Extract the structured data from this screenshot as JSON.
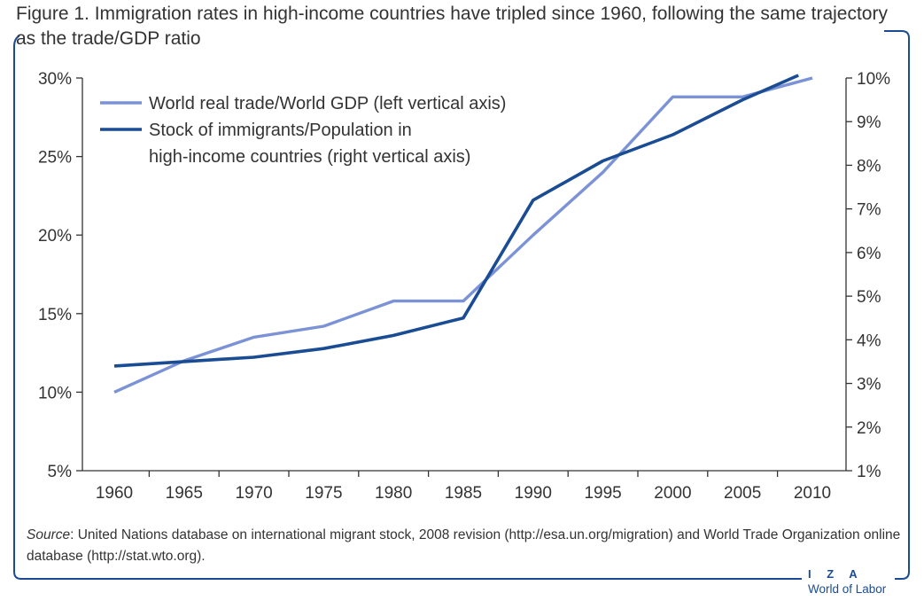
{
  "figure": {
    "title": "Figure 1. Immigration rates in high-income countries have tripled since 1960, following the same trajectory as the trade/GDP ratio",
    "source_label": "Source",
    "source_text": ": United Nations database on international migrant stock, 2008 revision (http://esa.un.org/migration) and World Trade Organization online database (http://stat.wto.org).",
    "logo_top": "I Z A",
    "logo_bottom": "World of Labor",
    "frame_color": "#1a4c94"
  },
  "chart_data": {
    "type": "line",
    "title": "Immigration rates in high-income countries have tripled since 1960, following the same trajectory as the trade/GDP ratio",
    "x_ticks": [
      1960,
      1965,
      1970,
      1975,
      1980,
      1985,
      1990,
      1995,
      2000,
      2005,
      2010
    ],
    "xlim": [
      1956,
      2015
    ],
    "y_left": {
      "lim": [
        5,
        30
      ],
      "ticks": [
        5,
        10,
        15,
        20,
        25,
        30
      ],
      "tick_labels": [
        "5%",
        "10%",
        "15%",
        "20%",
        "25%",
        "30%"
      ]
    },
    "y_right": {
      "lim": [
        1,
        10
      ],
      "ticks": [
        1,
        2,
        3,
        4,
        5,
        6,
        7,
        8,
        9,
        10
      ],
      "tick_labels": [
        "1%",
        "2%",
        "3%",
        "4%",
        "5%",
        "6%",
        "7%",
        "8%",
        "9%",
        "10%"
      ]
    },
    "grid": false,
    "legend_position": "top-left",
    "series": [
      {
        "name": "World real trade/World GDP (left vertical axis)",
        "axis": "left",
        "color": "#7b93d6",
        "x": [
          1960,
          1965,
          1970,
          1975,
          1980,
          1985,
          1990,
          1995,
          2000,
          2005,
          2010
        ],
        "y": [
          10.0,
          12.0,
          13.5,
          14.2,
          15.8,
          15.8,
          20.0,
          24.0,
          28.8,
          28.8,
          30.0
        ]
      },
      {
        "name": "Stock of immigrants/Population in high-income countries (right vertical axis)",
        "name_lines": [
          "Stock of immigrants/Population in",
          "high-income countries (right vertical axis)"
        ],
        "axis": "right",
        "color": "#1a4c94",
        "x": [
          1960,
          1965,
          1970,
          1975,
          1980,
          1985,
          1990,
          1995,
          2000,
          2005,
          2009
        ],
        "y": [
          3.4,
          3.5,
          3.6,
          3.8,
          4.1,
          4.5,
          7.2,
          8.1,
          8.7,
          9.5,
          10.1
        ]
      }
    ]
  }
}
